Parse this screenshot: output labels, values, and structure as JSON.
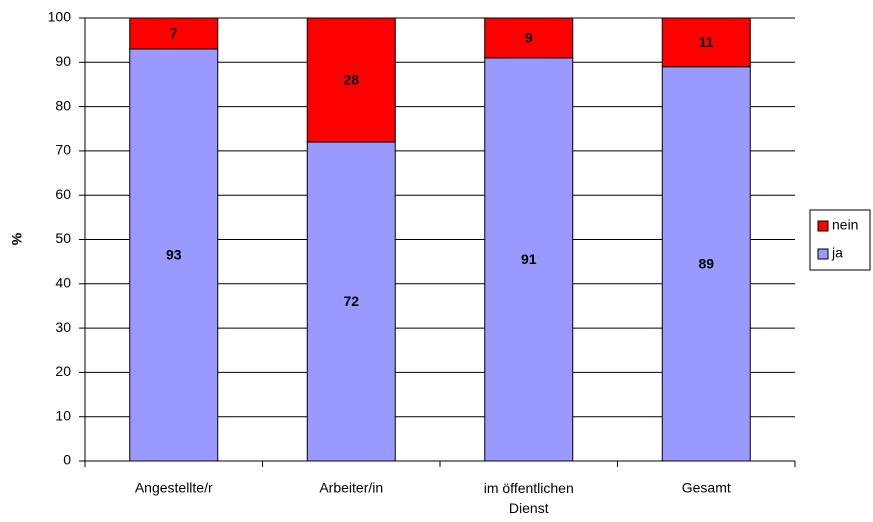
{
  "chart_data": {
    "type": "stacked_bar",
    "y_label": "%",
    "categories": [
      "Angestellte/r",
      "Arbeiter/in",
      "im öffentlichen Dienst",
      "Gesamt"
    ],
    "series": [
      {
        "name": "ja",
        "color": "#9999ff",
        "values": [
          93,
          72,
          91,
          89
        ]
      },
      {
        "name": "nein",
        "color": "#ff0000",
        "values": [
          7,
          28,
          9,
          11
        ]
      }
    ],
    "ylim": [
      0,
      100
    ],
    "yticks": [
      0,
      10,
      20,
      30,
      40,
      50,
      60,
      70,
      80,
      90,
      100
    ],
    "grid": true,
    "legend": "right"
  }
}
